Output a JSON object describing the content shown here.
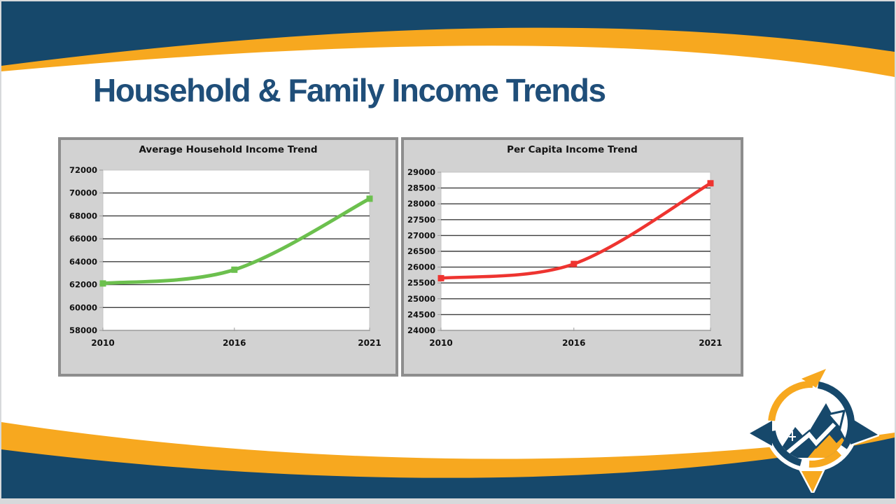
{
  "header": {
    "title": "Household & Family Income Trends"
  },
  "theme": {
    "navy": "#16486B",
    "orange": "#F7A81F",
    "title_blue": "#1F4E79",
    "panel_bg": "#D2D2D2",
    "panel_border": "#8D8D8D",
    "grid_dark": "#3D3D3D",
    "grid_light": "#C4C4C4",
    "green": "#6CC04E",
    "red": "#EE3430"
  },
  "logo": {
    "name": "compass-mountain-logo"
  },
  "chart_data": [
    {
      "type": "line",
      "title": "Average Household Income Trend",
      "x": [
        "2010",
        "2016",
        "2021"
      ],
      "values": [
        62100,
        63300,
        69500
      ],
      "series_color": "#6CC04E",
      "ylim": [
        58000,
        72000
      ],
      "y_step": 2000,
      "xlabel": "",
      "ylabel": "",
      "grid": "horizontal",
      "legend": "none",
      "marker": "square",
      "smooth": true
    },
    {
      "type": "line",
      "title": "Per Capita Income Trend",
      "x": [
        "2010",
        "2016",
        "2021"
      ],
      "values": [
        25650,
        26100,
        28650
      ],
      "series_color": "#EE3430",
      "ylim": [
        24000,
        29000
      ],
      "y_step": 500,
      "xlabel": "",
      "ylabel": "",
      "grid": "horizontal",
      "legend": "none",
      "marker": "square",
      "smooth": true
    }
  ]
}
